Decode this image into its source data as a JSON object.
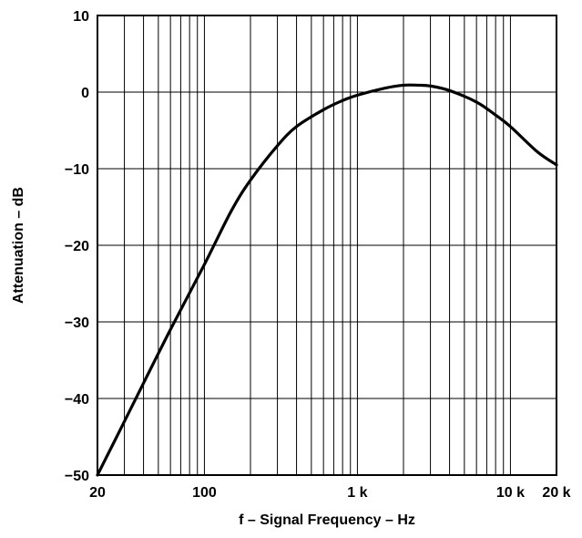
{
  "chart_data": {
    "type": "line",
    "title": "",
    "xlabel": "f – Signal Frequency – Hz",
    "ylabel": "Attenuation – dB",
    "x_scale": "log",
    "xlim": [
      20,
      20000
    ],
    "ylim": [
      -50,
      10
    ],
    "grid": true,
    "x_tick_labels": [
      {
        "value": 20,
        "label": "20"
      },
      {
        "value": 100,
        "label": "100"
      },
      {
        "value": 1000,
        "label": "1 k"
      },
      {
        "value": 10000,
        "label": "10 k"
      },
      {
        "value": 20000,
        "label": "20 k"
      }
    ],
    "y_tick_labels": [
      {
        "value": 10,
        "label": "10"
      },
      {
        "value": 0,
        "label": "0"
      },
      {
        "value": -10,
        "label": "−10"
      },
      {
        "value": -20,
        "label": "−20"
      },
      {
        "value": -30,
        "label": "−30"
      },
      {
        "value": -40,
        "label": "−40"
      },
      {
        "value": -50,
        "label": "−50"
      }
    ],
    "series": [
      {
        "color": "#000000",
        "x": [
          20,
          30,
          40,
          60,
          100,
          150,
          200,
          300,
          400,
          600,
          800,
          1000,
          1500,
          2000,
          2500,
          3000,
          4000,
          6000,
          8000,
          10000,
          15000,
          20000
        ],
        "y": [
          -50,
          -43,
          -38,
          -31,
          -22.5,
          -15.5,
          -11.5,
          -7,
          -4.5,
          -2.3,
          -1.1,
          -0.4,
          0.5,
          0.9,
          0.9,
          0.8,
          0.2,
          -1.3,
          -3,
          -4.5,
          -7.8,
          -9.5
        ]
      }
    ]
  }
}
